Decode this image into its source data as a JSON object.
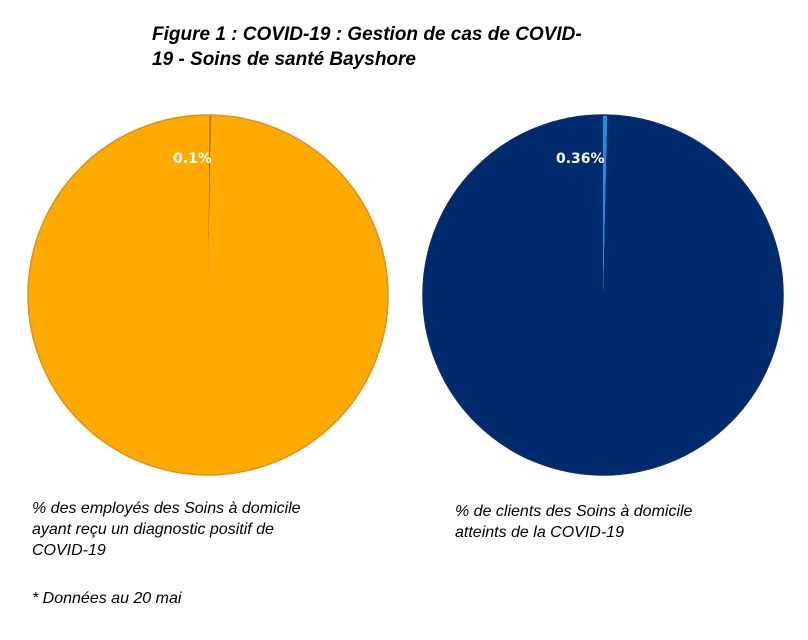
{
  "title_lines": [
    "Figure 1 : COVID-19 : Gestion de cas de COVID-",
    "19 - Soins de santé Bayshore"
  ],
  "footnote": "* Données au 20 mai",
  "chart_data": [
    {
      "type": "pie",
      "caption_lines": [
        "% des employés des Soins à domicile",
        "ayant reçu un diagnostic positif de",
        "COVID-19"
      ],
      "slices": [
        {
          "value": 0.1,
          "label": "0.1%",
          "color": "#8B4513"
        },
        {
          "value": 99.9,
          "label": "",
          "color": "#FFAA00"
        }
      ]
    },
    {
      "type": "pie",
      "caption_lines": [
        "% de clients des Soins à domicile",
        "atteints de la COVID-19"
      ],
      "slices": [
        {
          "value": 0.36,
          "label": "0.36%",
          "color": "#1E90E0"
        },
        {
          "value": 99.64,
          "label": "",
          "color": "#002A6E"
        }
      ]
    }
  ]
}
